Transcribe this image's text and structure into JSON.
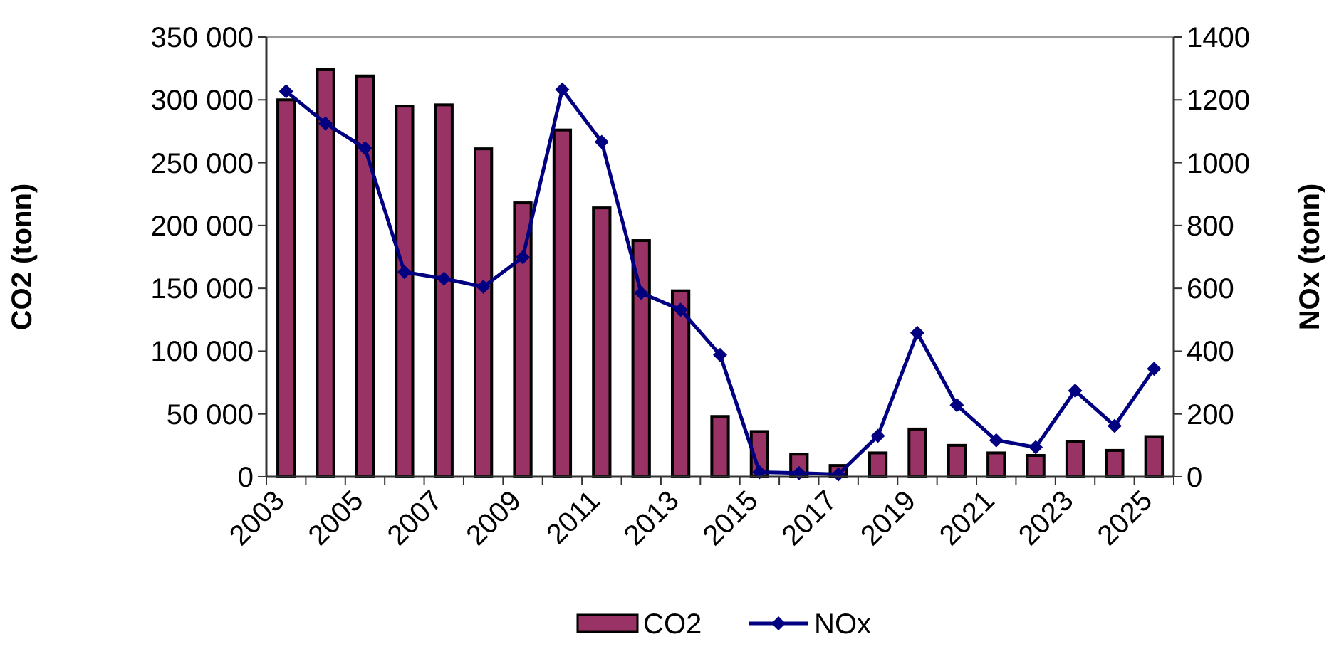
{
  "chart_data": {
    "type": "bar",
    "ylabel": "CO2 (tonn)",
    "y2label": "NOx (tonn)",
    "categories": [
      "2003",
      null,
      "2005",
      null,
      "2007",
      null,
      "2009",
      null,
      "2011",
      null,
      "2013",
      null,
      "2015",
      null,
      "2017",
      null,
      "2019",
      null,
      "2021",
      null,
      "2023",
      null,
      "2025"
    ],
    "series": [
      {
        "name": "CO2",
        "color": "#993366",
        "values": [
          300000,
          324000,
          319000,
          295000,
          296000,
          261000,
          218000,
          276000,
          214000,
          188000,
          148000,
          48000,
          36000,
          18000,
          9000,
          19000,
          38000,
          25000,
          19000,
          17000,
          28000,
          21000,
          32000
        ]
      },
      {
        "name": "NOx",
        "type": "line",
        "axis": "y2",
        "color": "#000080",
        "values": [
          1227,
          1125,
          1046,
          652,
          631,
          605,
          699,
          1233,
          1066,
          585,
          532,
          388,
          15,
          12,
          8,
          130,
          458,
          228,
          116,
          94,
          274,
          162,
          344
        ]
      }
    ],
    "ylim": [
      0,
      350000
    ],
    "yticks": [
      0,
      {
        "value": 50000,
        "label": "50 000"
      },
      {
        "value": 100000,
        "label": "100 000"
      },
      {
        "value": 150000,
        "label": "150 000"
      },
      {
        "value": 200000,
        "label": "200 000"
      },
      {
        "value": 250000,
        "label": "250 000"
      },
      {
        "value": 300000,
        "label": "300 000"
      },
      {
        "value": 350000,
        "label": "350 000"
      }
    ],
    "y2lim": [
      0,
      1400
    ],
    "y2ticks": [
      0,
      200,
      400,
      600,
      800,
      1000,
      1200,
      1400
    ],
    "marker": "diamond",
    "grid": false,
    "legend": "bottom"
  }
}
